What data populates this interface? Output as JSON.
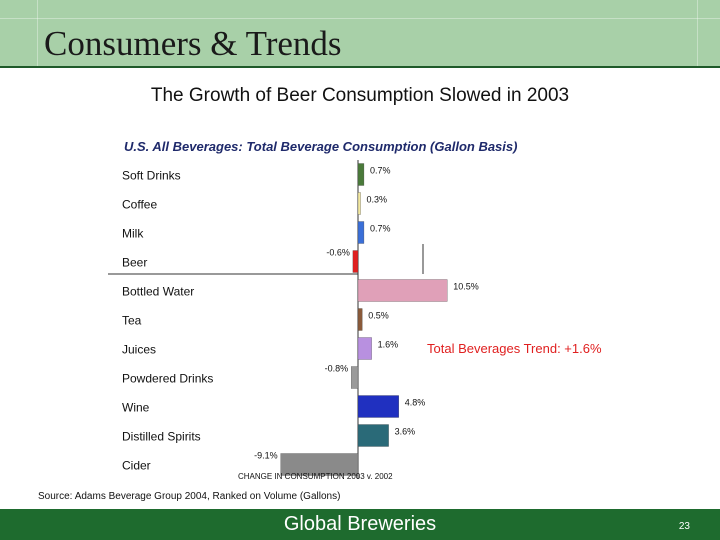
{
  "header": {
    "title": "Consumers & Trends"
  },
  "slide": {
    "title": "The Growth of Beer Consumption Slowed in 2003"
  },
  "footer": {
    "text": "Global Breweries",
    "page_number": "23"
  },
  "chart_data": {
    "type": "bar",
    "orientation": "horizontal",
    "title": "U.S. All Beverages: Total Beverage Consumption (Gallon Basis)",
    "xlabel": "CHANGE IN CONSUMPTION 2003 v. 2002",
    "ylabel": "",
    "categories": [
      "Soft Drinks",
      "Coffee",
      "Milk",
      "Beer",
      "Bottled Water",
      "Tea",
      "Juices",
      "Powdered Drinks",
      "Wine",
      "Distilled Spirits",
      "Cider"
    ],
    "values": [
      0.7,
      0.3,
      0.7,
      -0.6,
      10.5,
      0.5,
      1.6,
      -0.8,
      4.8,
      3.6,
      -9.1
    ],
    "value_labels": [
      "0.7%",
      "0.3%",
      "0.7%",
      "-0.6%",
      "10.5%",
      "0.5%",
      "1.6%",
      "-0.8%",
      "4.8%",
      "3.6%",
      "-9.1%"
    ],
    "colors": [
      "#4a7a3a",
      "#f3e8a0",
      "#3a6fd8",
      "#e02020",
      "#e0a0b8",
      "#8a5a3a",
      "#b890e0",
      "#9a9a9a",
      "#2030c0",
      "#2a6a78",
      "#8a8a8a"
    ],
    "annotation": "Total Beverages Trend: +1.6%",
    "annotation_color": "#e02020",
    "source": "Source: Adams Beverage Group 2004, Ranked on Volume (Gallons)"
  }
}
